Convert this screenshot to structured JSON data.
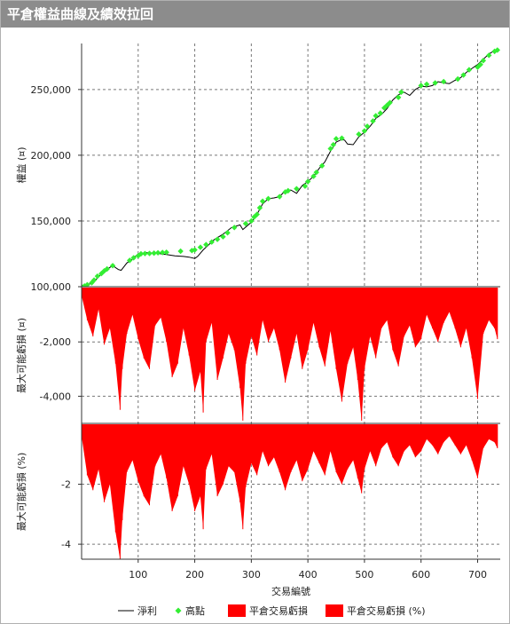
{
  "window": {
    "title": "平倉權益曲線及績效拉回"
  },
  "chart_data": [
    {
      "type": "line",
      "panel": "equity",
      "ylabel": "權益 (¤)",
      "ylim": [
        100000,
        285000
      ],
      "yticks": [
        100000,
        150000,
        200000,
        250000
      ],
      "ytick_labels": [
        "100,000",
        "150,000",
        "200,000",
        "250,000"
      ],
      "xlim": [
        0,
        740
      ],
      "grid": true,
      "series": [
        {
          "name": "淨利",
          "color": "#000000",
          "x": [
            0,
            20,
            40,
            55,
            65,
            70,
            80,
            90,
            100,
            115,
            120,
            130,
            140,
            150,
            165,
            180,
            190,
            200,
            205,
            215,
            225,
            235,
            250,
            265,
            280,
            285,
            300,
            310,
            320,
            330,
            340,
            350,
            360,
            370,
            380,
            390,
            400,
            410,
            420,
            430,
            440,
            450,
            460,
            465,
            470,
            480,
            490,
            500,
            510,
            520,
            530,
            540,
            550,
            560,
            570,
            580,
            590,
            600,
            610,
            620,
            630,
            640,
            650,
            660,
            670,
            680,
            690,
            700,
            710,
            720,
            730,
            735
          ],
          "y": [
            100000,
            103000,
            112000,
            116000,
            113000,
            112500,
            118000,
            121000,
            125000,
            126000,
            125500,
            126000,
            125000,
            124500,
            123500,
            123000,
            122500,
            121500,
            123000,
            128000,
            132000,
            136000,
            140000,
            145000,
            147000,
            143500,
            149000,
            155000,
            163000,
            167000,
            167500,
            168500,
            173000,
            173500,
            171000,
            177000,
            180000,
            184000,
            190000,
            195000,
            203000,
            210000,
            212000,
            211500,
            208500,
            208000,
            214000,
            217500,
            222000,
            228000,
            231000,
            235500,
            242000,
            246000,
            248000,
            245500,
            250000,
            252500,
            252000,
            253000,
            256000,
            255000,
            254500,
            257000,
            259000,
            263000,
            266000,
            269000,
            273000,
            277000,
            279500,
            280000
          ]
        },
        {
          "name": "高點",
          "color": "#33ee33",
          "marker": "diamond",
          "x": [
            0,
            5,
            10,
            18,
            22,
            28,
            35,
            40,
            45,
            55,
            85,
            92,
            100,
            105,
            112,
            120,
            128,
            135,
            143,
            150,
            175,
            195,
            200,
            210,
            220,
            230,
            240,
            250,
            258,
            270,
            290,
            300,
            305,
            310,
            315,
            320,
            330,
            350,
            360,
            365,
            380,
            395,
            400,
            410,
            415,
            425,
            440,
            445,
            450,
            460,
            490,
            500,
            505,
            515,
            520,
            528,
            535,
            540,
            545,
            560,
            565,
            600,
            610,
            625,
            640,
            665,
            675,
            685,
            700,
            705,
            710,
            720,
            730,
            735
          ],
          "y": [
            100000,
            100500,
            101500,
            103000,
            105000,
            108000,
            110000,
            112000,
            113500,
            116000,
            120000,
            122000,
            123500,
            125000,
            125200,
            125300,
            125500,
            125800,
            126000,
            126200,
            127000,
            127500,
            128000,
            130000,
            132000,
            134000,
            136000,
            138000,
            141000,
            145000,
            148000,
            150000,
            153000,
            155000,
            160000,
            165000,
            167000,
            168500,
            172000,
            173000,
            174500,
            176500,
            180000,
            184000,
            187000,
            192000,
            205000,
            208000,
            212500,
            213000,
            216000,
            218500,
            222000,
            226000,
            230000,
            232000,
            236000,
            238000,
            240000,
            244000,
            248000,
            253000,
            254000,
            255000,
            256000,
            258000,
            261000,
            265000,
            267000,
            269000,
            272000,
            276000,
            279000,
            280000
          ]
        }
      ]
    },
    {
      "type": "area",
      "panel": "drawdown-currency",
      "ylabel": "最大可能虧損 (¤)",
      "ylim": [
        -5000,
        0
      ],
      "yticks": [
        -2000,
        -4000
      ],
      "ytick_labels": [
        "-2,000",
        "-4,000"
      ],
      "xlim": [
        0,
        740
      ],
      "grid": true,
      "series": [
        {
          "name": "平倉交易虧損",
          "color": "#ff0000",
          "x": [
            0,
            10,
            20,
            30,
            40,
            50,
            60,
            68,
            72,
            80,
            90,
            100,
            110,
            120,
            130,
            140,
            150,
            160,
            170,
            180,
            190,
            200,
            210,
            215,
            220,
            230,
            240,
            250,
            260,
            270,
            280,
            285,
            290,
            300,
            310,
            320,
            330,
            340,
            350,
            360,
            370,
            380,
            390,
            400,
            410,
            420,
            430,
            440,
            450,
            460,
            470,
            480,
            488,
            495,
            500,
            510,
            520,
            530,
            540,
            550,
            560,
            570,
            580,
            590,
            600,
            610,
            620,
            630,
            640,
            650,
            660,
            670,
            680,
            690,
            700,
            710,
            720,
            730,
            735
          ],
          "y": [
            -300,
            -1200,
            -1800,
            -800,
            -2100,
            -1500,
            -2800,
            -4500,
            -3000,
            -1700,
            -1000,
            -1900,
            -2600,
            -3000,
            -1400,
            -1100,
            -2000,
            -3300,
            -2800,
            -1500,
            -2500,
            -3800,
            -3100,
            -4600,
            -2000,
            -1300,
            -3400,
            -2600,
            -1700,
            -2300,
            -3700,
            -4900,
            -2800,
            -1800,
            -2500,
            -1200,
            -2000,
            -1500,
            -2300,
            -3500,
            -2600,
            -1700,
            -3000,
            -2300,
            -1300,
            -2200,
            -2900,
            -1600,
            -3000,
            -4200,
            -2800,
            -2200,
            -3400,
            -4900,
            -3000,
            -1800,
            -2600,
            -1500,
            -1200,
            -2300,
            -2900,
            -1800,
            -1400,
            -2200,
            -1900,
            -1000,
            -1500,
            -2000,
            -1300,
            -900,
            -1500,
            -2200,
            -1500,
            -2600,
            -4100,
            -1700,
            -1200,
            -1500,
            -1900
          ]
        }
      ]
    },
    {
      "type": "area",
      "panel": "drawdown-percent",
      "ylabel": "最大可能虧損 (%)",
      "ylim": [
        -4.5,
        0
      ],
      "yticks": [
        -2,
        -4
      ],
      "ytick_labels": [
        "-2",
        "-4"
      ],
      "xlim": [
        0,
        740
      ],
      "xticks": [
        100,
        200,
        300,
        400,
        500,
        600,
        700
      ],
      "xtick_labels": [
        "100",
        "200",
        "300",
        "400",
        "500",
        "600",
        "700"
      ],
      "xlabel": "交易編號",
      "grid": true,
      "series": [
        {
          "name": "平倉交易虧損 (%)",
          "color": "#ff0000",
          "x": [
            0,
            10,
            20,
            30,
            40,
            50,
            60,
            68,
            72,
            80,
            90,
            100,
            110,
            120,
            130,
            140,
            150,
            160,
            170,
            180,
            190,
            200,
            210,
            215,
            220,
            230,
            240,
            250,
            260,
            270,
            280,
            285,
            290,
            300,
            310,
            320,
            330,
            340,
            350,
            360,
            370,
            380,
            390,
            400,
            410,
            420,
            430,
            440,
            450,
            460,
            470,
            480,
            488,
            495,
            500,
            510,
            520,
            530,
            540,
            550,
            560,
            570,
            580,
            590,
            600,
            610,
            620,
            630,
            640,
            650,
            660,
            670,
            680,
            690,
            700,
            710,
            720,
            730,
            735
          ],
          "y": [
            -0.4,
            -1.7,
            -2.2,
            -1.5,
            -2.6,
            -2.0,
            -3.6,
            -4.5,
            -3.2,
            -1.6,
            -1.2,
            -1.9,
            -2.4,
            -2.7,
            -1.4,
            -1.0,
            -1.8,
            -2.9,
            -2.4,
            -1.4,
            -2.0,
            -2.9,
            -2.4,
            -3.5,
            -1.5,
            -1.0,
            -2.4,
            -2.0,
            -1.4,
            -1.6,
            -2.6,
            -3.5,
            -2.1,
            -1.3,
            -1.7,
            -0.9,
            -1.4,
            -1.1,
            -1.6,
            -2.2,
            -1.6,
            -1.2,
            -1.9,
            -1.5,
            -0.9,
            -1.3,
            -1.7,
            -0.9,
            -1.6,
            -2.0,
            -1.5,
            -1.2,
            -1.8,
            -2.3,
            -1.5,
            -0.9,
            -1.4,
            -0.8,
            -0.6,
            -1.1,
            -1.4,
            -0.9,
            -0.7,
            -1.1,
            -0.9,
            -0.5,
            -0.7,
            -1.0,
            -0.6,
            -0.4,
            -0.7,
            -1.0,
            -0.7,
            -1.2,
            -1.8,
            -0.8,
            -0.5,
            -0.6,
            -0.8
          ]
        }
      ]
    }
  ],
  "legend": {
    "placement": "bottom",
    "items": [
      {
        "label": "淨利",
        "symbol": "line",
        "color": "#000000"
      },
      {
        "label": "高點",
        "symbol": "diamond",
        "color": "#33ee33"
      },
      {
        "label": "平倉交易虧損",
        "symbol": "box",
        "color": "#ff0000"
      },
      {
        "label": "平倉交易虧損 (%)",
        "symbol": "box",
        "color": "#ff0000"
      }
    ]
  }
}
